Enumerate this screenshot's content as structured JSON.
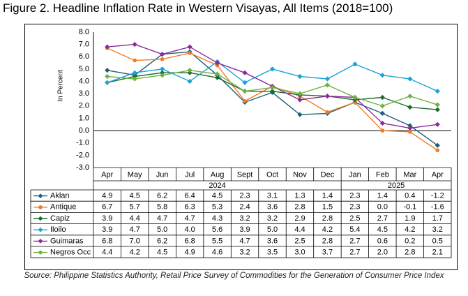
{
  "title": "Figure 2. Headline Inflation Rate in Western Visayas, All Items (2018=100)",
  "source": "Source: Philippine Statistics Authority, Retail Price Survey of Commodities for the Generation of Consumer Price Index",
  "chart_data": {
    "type": "line",
    "title": "Figure 2. Headline Inflation Rate in Western Visayas, All Items (2018=100)",
    "ylabel": "In Percent",
    "ylim": [
      -3.0,
      8.0
    ],
    "ytick_step": 1.0,
    "yticks": [
      "8.0",
      "7.0",
      "6.0",
      "5.0",
      "4.0",
      "3.0",
      "2.0",
      "1.0",
      "0.0",
      "-1.0",
      "-2.0",
      "-3.0"
    ],
    "grid": false,
    "legend": "data table below plot",
    "categories": [
      "Apr",
      "May",
      "Jun",
      "Jul",
      "Aug",
      "Sept",
      "Oct",
      "Nov",
      "Dec",
      "Jan",
      "Feb",
      "Mar",
      "Apr"
    ],
    "year_groups": [
      {
        "label": "2024",
        "start": 0,
        "count": 9
      },
      {
        "label": "2025",
        "start": 9,
        "count": 4
      }
    ],
    "series": [
      {
        "name": "Aklan",
        "color": "#1f5f7a",
        "marker": "diamond",
        "values": [
          4.9,
          4.5,
          6.2,
          6.4,
          4.5,
          2.3,
          3.1,
          1.3,
          1.4,
          2.3,
          1.4,
          0.4,
          -1.2
        ],
        "labels": [
          "4.9",
          "4.5",
          "6.2",
          "6.4",
          "4.5",
          "2.3",
          "3.1",
          "1.3",
          "1.4",
          "2.3",
          "1.4",
          "0.4",
          "-1.2"
        ]
      },
      {
        "name": "Antique",
        "color": "#f07c22",
        "marker": "circle",
        "values": [
          6.7,
          5.7,
          5.8,
          6.3,
          5.3,
          2.4,
          3.6,
          2.8,
          1.5,
          2.3,
          0.0,
          -0.1,
          -1.6
        ],
        "labels": [
          "6.7",
          "5.7",
          "5.8",
          "6.3",
          "5.3",
          "2.4",
          "3.6",
          "2.8",
          "1.5",
          "2.3",
          "0.0",
          "-0.1",
          "-1.6"
        ]
      },
      {
        "name": "Capiz",
        "color": "#1e6b2e",
        "marker": "diamond",
        "values": [
          3.9,
          4.4,
          4.7,
          4.7,
          4.3,
          3.2,
          3.2,
          2.9,
          2.8,
          2.5,
          2.7,
          1.9,
          1.7
        ],
        "labels": [
          "3.9",
          "4.4",
          "4.7",
          "4.7",
          "4.3",
          "3.2",
          "3.2",
          "2.9",
          "2.8",
          "2.5",
          "2.7",
          "1.9",
          "1.7"
        ]
      },
      {
        "name": "Iloilo",
        "color": "#1ca3d9",
        "marker": "diamond",
        "values": [
          3.9,
          4.7,
          5.0,
          4.0,
          5.6,
          3.9,
          5.0,
          4.4,
          4.2,
          5.4,
          4.5,
          4.2,
          3.2
        ],
        "labels": [
          "3.9",
          "4.7",
          "5.0",
          "4.0",
          "5.6",
          "3.9",
          "5.0",
          "4.4",
          "4.2",
          "5.4",
          "4.5",
          "4.2",
          "3.2"
        ]
      },
      {
        "name": "Guimaras",
        "color": "#8b2a9b",
        "marker": "diamond",
        "values": [
          6.8,
          7.0,
          6.2,
          6.8,
          5.5,
          4.7,
          3.6,
          2.5,
          2.8,
          2.7,
          0.6,
          0.2,
          0.5
        ],
        "labels": [
          "6.8",
          "7.0",
          "6.2",
          "6.8",
          "5.5",
          "4.7",
          "3.6",
          "2.5",
          "2.8",
          "2.7",
          "0.6",
          "0.2",
          "0.5"
        ]
      },
      {
        "name": "Negros Occ",
        "color": "#6db33f",
        "marker": "diamond",
        "values": [
          4.4,
          4.2,
          4.5,
          4.9,
          4.6,
          3.2,
          3.5,
          3.0,
          3.7,
          2.7,
          2.0,
          2.8,
          2.1
        ],
        "labels": [
          "4.4",
          "4.2",
          "4.5",
          "4.9",
          "4.6",
          "3.2",
          "3.5",
          "3.0",
          "3.7",
          "2.7",
          "2.0",
          "2.8",
          "2.1"
        ]
      }
    ]
  }
}
